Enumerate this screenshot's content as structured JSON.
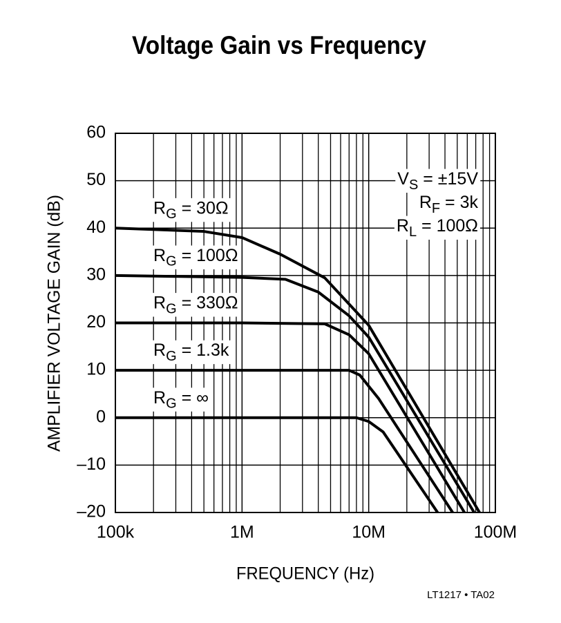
{
  "chart_data": {
    "type": "line",
    "title": "Voltage Gain vs Frequency",
    "xlabel": "FREQUENCY (Hz)",
    "ylabel": "AMPLIFIER VOLTAGE GAIN (dB)",
    "xscale": "log",
    "grid": true,
    "xlim": [
      100000,
      100000000
    ],
    "ylim": [
      -20,
      60
    ],
    "xticks": [
      {
        "value": 100000,
        "label": "100k"
      },
      {
        "value": 1000000,
        "label": "1M"
      },
      {
        "value": 10000000,
        "label": "10M"
      },
      {
        "value": 100000000,
        "label": "100M"
      }
    ],
    "xminor": [
      200000,
      300000,
      400000,
      500000,
      600000,
      700000,
      800000,
      900000,
      2000000,
      3000000,
      4000000,
      5000000,
      6000000,
      7000000,
      8000000,
      9000000,
      20000000,
      30000000,
      40000000,
      50000000,
      60000000,
      70000000,
      80000000,
      90000000
    ],
    "yticks": [
      {
        "value": -20,
        "label": "–20"
      },
      {
        "value": -10,
        "label": "–10"
      },
      0,
      10,
      20,
      30,
      40,
      50,
      60
    ],
    "series": [
      {
        "name": "RG = 30Ω",
        "color": "#000000",
        "x": [
          100000,
          500000,
          1000000,
          2000000,
          4500000,
          10000000,
          75000000
        ],
        "values": [
          40,
          39.3,
          38,
          34.5,
          29.5,
          19.5,
          -20
        ]
      },
      {
        "name": "RG = 100Ω",
        "color": "#000000",
        "x": [
          100000,
          1000000,
          2200000,
          4000000,
          7000000,
          10000000,
          68000000
        ],
        "values": [
          30,
          29.6,
          29.2,
          26.5,
          21.5,
          17,
          -20
        ]
      },
      {
        "name": "RG = 330Ω",
        "color": "#000000",
        "x": [
          100000,
          1000000,
          4500000,
          7000000,
          10000000,
          57000000
        ],
        "values": [
          20,
          20,
          19.8,
          17.5,
          13.5,
          -20
        ]
      },
      {
        "name": "RG = 1.3k",
        "color": "#000000",
        "x": [
          100000,
          1000000,
          7000000,
          8500000,
          12000000,
          46000000
        ],
        "values": [
          10,
          10,
          10,
          9,
          4,
          -20
        ]
      },
      {
        "name": "RG = ∞",
        "color": "#000000",
        "x": [
          100000,
          1000000,
          8000000,
          10000000,
          13000000,
          35000000
        ],
        "values": [
          0,
          0,
          0,
          -0.8,
          -3,
          -20
        ]
      }
    ],
    "annotations": [
      "VS = ±15V",
      "RF = 3k",
      "RL = 100Ω"
    ],
    "footnote": "LT1217 • TA02"
  }
}
